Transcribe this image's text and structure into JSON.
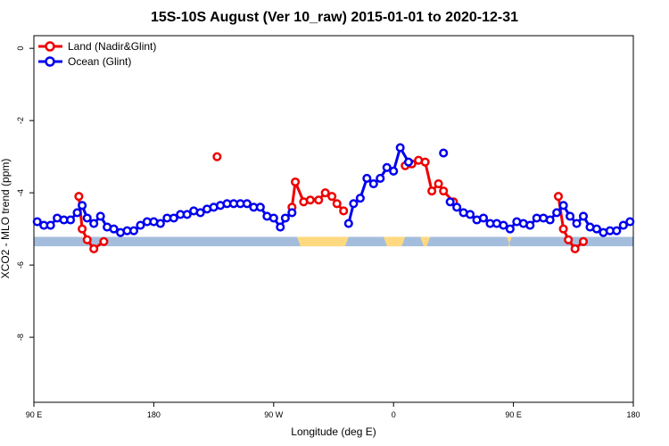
{
  "chart_data": {
    "type": "line",
    "title": "15S-10S August (Ver 10_raw)   2015-01-01 to 2020-12-31",
    "xlabel": "Longitude (deg E)",
    "ylabel": "XCO2 - MLO trend (ppm)",
    "xlim": [
      90,
      450
    ],
    "ylim": [
      -9.8,
      0.35
    ],
    "x_ticks": [
      {
        "value": 90,
        "label": "90 E"
      },
      {
        "value": 162,
        "label": "180"
      },
      {
        "value": 234,
        "label": "90 W"
      },
      {
        "value": 306,
        "label": "0"
      },
      {
        "value": 378,
        "label": "90 E"
      },
      {
        "value": 450,
        "label": "180"
      }
    ],
    "y_ticks": [
      {
        "value": 0,
        "label": "0"
      },
      {
        "value": -2,
        "label": "-2"
      },
      {
        "value": -4,
        "label": "-4"
      },
      {
        "value": -6,
        "label": "-6"
      },
      {
        "value": -8,
        "label": "-8"
      }
    ],
    "legend_position": "top-left",
    "grid": false,
    "surface_band": {
      "y_top": -5.22,
      "y_bottom": -5.48,
      "ocean_color": "#a4bddc",
      "land_color": "#ffd980",
      "land_segments": [
        [
          119,
          123
        ],
        [
          248,
          279
        ],
        [
          300,
          313
        ],
        [
          322,
          328
        ],
        [
          374,
          377
        ]
      ]
    },
    "series": [
      {
        "name": "Land (Nadir&Glint)",
        "color": "#ee0000",
        "segments": [
          [
            [
              117,
              -4.1
            ],
            [
              119,
              -5.0
            ],
            [
              122,
              -5.3
            ],
            [
              126,
              -5.55
            ],
            [
              132,
              -5.35
            ]
          ],
          [
            [
              200,
              -3.0
            ]
          ],
          [
            [
              245,
              -4.4
            ],
            [
              247,
              -3.7
            ],
            [
              252,
              -4.25
            ],
            [
              256,
              -4.2
            ],
            [
              261,
              -4.2
            ],
            [
              265,
              -4.0
            ],
            [
              269,
              -4.1
            ],
            [
              272,
              -4.3
            ],
            [
              276,
              -4.5
            ]
          ],
          [
            [
              313,
              -3.25
            ],
            [
              317,
              -3.2
            ],
            [
              321,
              -3.1
            ],
            [
              325,
              -3.15
            ],
            [
              329,
              -3.95
            ],
            [
              333,
              -3.75
            ],
            [
              336,
              -3.95
            ],
            [
              342,
              -4.25
            ]
          ],
          [
            [
              405,
              -4.1
            ],
            [
              408,
              -5.0
            ],
            [
              411,
              -5.3
            ],
            [
              415,
              -5.55
            ],
            [
              420,
              -5.35
            ]
          ]
        ]
      },
      {
        "name": "Ocean (Glint)",
        "color": "#0000ee",
        "segments": [
          [
            [
              92,
              -4.8
            ],
            [
              96,
              -4.9
            ],
            [
              100,
              -4.9
            ],
            [
              104,
              -4.7
            ],
            [
              108,
              -4.75
            ],
            [
              112,
              -4.75
            ],
            [
              116,
              -4.55
            ],
            [
              119,
              -4.35
            ],
            [
              122,
              -4.7
            ],
            [
              126,
              -4.85
            ],
            [
              130,
              -4.65
            ],
            [
              134,
              -4.95
            ],
            [
              138,
              -5.0
            ],
            [
              142,
              -5.1
            ],
            [
              146,
              -5.05
            ],
            [
              150,
              -5.05
            ],
            [
              154,
              -4.9
            ],
            [
              158,
              -4.8
            ],
            [
              162,
              -4.8
            ],
            [
              166,
              -4.85
            ],
            [
              170,
              -4.7
            ],
            [
              174,
              -4.7
            ],
            [
              178,
              -4.6
            ],
            [
              182,
              -4.6
            ],
            [
              186,
              -4.5
            ],
            [
              190,
              -4.55
            ],
            [
              194,
              -4.45
            ],
            [
              198,
              -4.4
            ],
            [
              202,
              -4.35
            ],
            [
              206,
              -4.3
            ],
            [
              210,
              -4.3
            ],
            [
              214,
              -4.3
            ],
            [
              218,
              -4.3
            ],
            [
              222,
              -4.4
            ],
            [
              226,
              -4.4
            ],
            [
              230,
              -4.65
            ],
            [
              234,
              -4.7
            ],
            [
              238,
              -4.95
            ],
            [
              241,
              -4.7
            ],
            [
              245,
              -4.55
            ]
          ],
          [
            [
              279,
              -4.85
            ],
            [
              282,
              -4.3
            ],
            [
              286,
              -4.15
            ],
            [
              290,
              -3.6
            ],
            [
              294,
              -3.75
            ],
            [
              298,
              -3.6
            ],
            [
              302,
              -3.3
            ],
            [
              306,
              -3.4
            ],
            [
              310,
              -2.75
            ],
            [
              315,
              -3.15
            ]
          ],
          [
            [
              336,
              -2.9
            ]
          ],
          [
            [
              340,
              -4.25
            ],
            [
              344,
              -4.4
            ],
            [
              348,
              -4.55
            ],
            [
              352,
              -4.6
            ],
            [
              356,
              -4.75
            ],
            [
              360,
              -4.7
            ],
            [
              364,
              -4.85
            ],
            [
              368,
              -4.85
            ],
            [
              372,
              -4.9
            ],
            [
              376,
              -5.0
            ],
            [
              380,
              -4.8
            ],
            [
              384,
              -4.85
            ],
            [
              388,
              -4.9
            ],
            [
              392,
              -4.7
            ],
            [
              396,
              -4.7
            ],
            [
              400,
              -4.75
            ],
            [
              404,
              -4.55
            ],
            [
              408,
              -4.35
            ],
            [
              412,
              -4.65
            ],
            [
              416,
              -4.85
            ],
            [
              420,
              -4.65
            ],
            [
              424,
              -4.95
            ],
            [
              428,
              -5.0
            ],
            [
              432,
              -5.1
            ],
            [
              436,
              -5.05
            ],
            [
              440,
              -5.05
            ],
            [
              444,
              -4.9
            ],
            [
              448,
              -4.8
            ]
          ]
        ]
      }
    ]
  }
}
